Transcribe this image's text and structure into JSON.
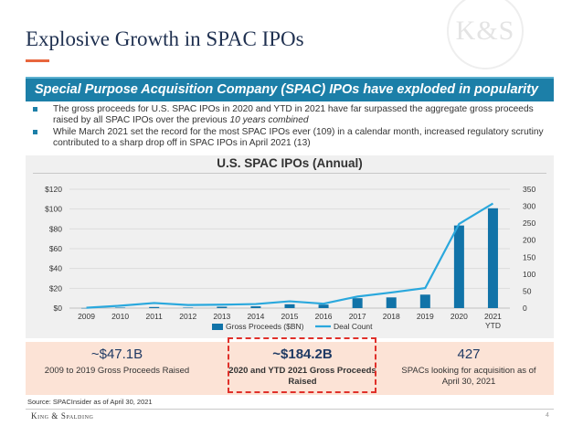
{
  "slide": {
    "title": "Explosive Growth in SPAC IPOs",
    "logo_text": "K&S",
    "banner": "Special Purpose Acquisition Company (SPAC) IPOs have exploded in popularity",
    "bullets": [
      {
        "text": "The gross proceeds for U.S. SPAC IPOs in 2020 and YTD in 2021 have far surpassed the aggregate gross proceeds raised by all SPAC IPOs over the previous ",
        "emphasis": "10 years combined"
      },
      {
        "text": "While March 2021 set the record for the most SPAC IPOs ever (109) in a calendar month, increased regulatory scrutiny contributed to a sharp drop off in SPAC IPOs in April 2021 (13)",
        "emphasis": ""
      }
    ],
    "stats": [
      {
        "value": "~$47.1B",
        "label": "2009 to 2019 Gross Proceeds Raised"
      },
      {
        "value": "~$184.2B",
        "label": "2020 and YTD 2021 Gross Proceeds Raised"
      },
      {
        "value": "427",
        "label": "SPACs looking for acquisition as of April 30, 2021"
      }
    ],
    "source": "Source:  SPACInsider as of April 30, 2021",
    "company": "King & Spalding",
    "page_number": "4"
  },
  "chart_data": {
    "type": "bar",
    "title": "U.S. SPAC IPOs (Annual)",
    "categories": [
      "2009",
      "2010",
      "2011",
      "2012",
      "2013",
      "2014",
      "2015",
      "2016",
      "2017",
      "2018",
      "2019",
      "2020",
      "2021 YTD"
    ],
    "series": [
      {
        "name": "Gross Proceeds ($BN)",
        "type": "bar",
        "axis": "left",
        "color": "#1173a8",
        "values": [
          0.1,
          0.5,
          1.1,
          0.5,
          1.4,
          1.8,
          3.9,
          3.5,
          10.0,
          10.8,
          13.6,
          83.4,
          100.8
        ]
      },
      {
        "name": "Deal Count",
        "type": "line",
        "axis": "right",
        "color": "#2aa8dd",
        "values": [
          1,
          7,
          15,
          9,
          10,
          12,
          20,
          13,
          34,
          46,
          59,
          248,
          308
        ]
      }
    ],
    "y_left": {
      "ticks": [
        "$0",
        "$20",
        "$40",
        "$60",
        "$80",
        "$100",
        "$120"
      ],
      "min": 0,
      "max": 120
    },
    "y_right": {
      "ticks": [
        "0",
        "50",
        "100",
        "150",
        "200",
        "250",
        "300",
        "350"
      ],
      "min": 0,
      "max": 350
    },
    "grid": true,
    "legend_position": "bottom"
  }
}
